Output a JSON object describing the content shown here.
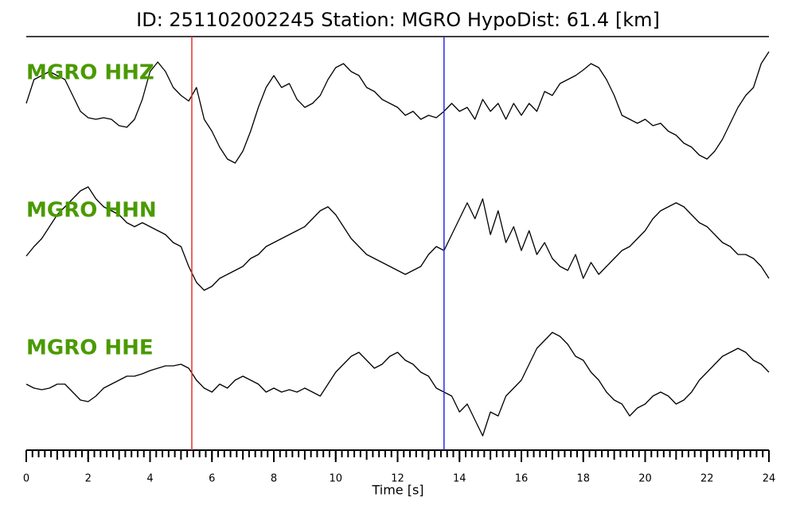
{
  "chart_data": {
    "type": "line",
    "title": "ID: 251102002245   Station: MGRO   HypoDist:    61.4 [km]",
    "xlabel": "Time [s]",
    "x": [
      0,
      0.25,
      0.5,
      0.75,
      1,
      1.25,
      1.5,
      1.75,
      2,
      2.25,
      2.5,
      2.75,
      3,
      3.25,
      3.5,
      3.75,
      4,
      4.25,
      4.5,
      4.75,
      5,
      5.25,
      5.5,
      5.75,
      6,
      6.25,
      6.5,
      6.75,
      7,
      7.25,
      7.5,
      7.75,
      8,
      8.25,
      8.5,
      8.75,
      9,
      9.25,
      9.5,
      9.75,
      10,
      10.25,
      10.5,
      10.75,
      11,
      11.25,
      11.5,
      11.75,
      12,
      12.25,
      12.5,
      12.75,
      13,
      13.25,
      13.5,
      13.75,
      14,
      14.25,
      14.5,
      14.75,
      15,
      15.25,
      15.5,
      15.75,
      16,
      16.25,
      16.5,
      16.75,
      17,
      17.25,
      17.5,
      17.75,
      18,
      18.25,
      18.5,
      18.75,
      19,
      19.25,
      19.5,
      19.75,
      20,
      20.25,
      20.5,
      20.75,
      21,
      21.25,
      21.5,
      21.75,
      22,
      22.25,
      22.5,
      22.75,
      23,
      23.25,
      23.5,
      23.75,
      24
    ],
    "series": [
      {
        "name": "MGRO HHZ",
        "color": "#000000",
        "values": [
          5,
          35,
          40,
          45,
          40,
          35,
          15,
          -5,
          -13,
          -15,
          -13,
          -15,
          -23,
          -25,
          -15,
          10,
          45,
          57,
          45,
          25,
          15,
          8,
          25,
          -15,
          -30,
          -50,
          -65,
          -70,
          -55,
          -30,
          0,
          25,
          40,
          25,
          30,
          10,
          0,
          5,
          15,
          35,
          50,
          55,
          45,
          40,
          25,
          20,
          10,
          5,
          0,
          -10,
          -5,
          -15,
          -10,
          -13,
          -5,
          5,
          -5,
          0,
          -15,
          10,
          -5,
          5,
          -15,
          5,
          -10,
          5,
          -5,
          20,
          15,
          30,
          35,
          40,
          47,
          55,
          50,
          35,
          15,
          -10,
          -15,
          -20,
          -15,
          -23,
          -20,
          -30,
          -35,
          -45,
          -50,
          -60,
          -65,
          -55,
          -40,
          -20,
          0,
          15,
          25,
          55,
          70
        ]
      },
      {
        "name": "MGRO HHN",
        "color": "#000000",
        "values": [
          -17,
          -5,
          5,
          20,
          35,
          45,
          55,
          65,
          70,
          55,
          45,
          40,
          35,
          25,
          20,
          25,
          20,
          15,
          10,
          0,
          -5,
          -30,
          -50,
          -60,
          -55,
          -45,
          -40,
          -35,
          -30,
          -20,
          -15,
          -5,
          0,
          5,
          10,
          15,
          20,
          30,
          40,
          45,
          35,
          20,
          5,
          -5,
          -15,
          -20,
          -25,
          -30,
          -35,
          -40,
          -35,
          -30,
          -15,
          -5,
          -10,
          10,
          30,
          50,
          30,
          55,
          10,
          40,
          0,
          20,
          -10,
          15,
          -15,
          0,
          -20,
          -30,
          -35,
          -15,
          -45,
          -25,
          -40,
          -30,
          -20,
          -10,
          -5,
          5,
          15,
          30,
          40,
          45,
          50,
          45,
          35,
          25,
          20,
          10,
          0,
          -5,
          -15,
          -15,
          -20,
          -30,
          -45
        ]
      },
      {
        "name": "MGRO HHE",
        "color": "#000000",
        "values": [
          -5,
          -10,
          -12,
          -10,
          -5,
          -5,
          -15,
          -25,
          -27,
          -20,
          -10,
          -5,
          0,
          5,
          5,
          8,
          12,
          15,
          18,
          18,
          20,
          15,
          0,
          -10,
          -15,
          -5,
          -10,
          0,
          5,
          0,
          -5,
          -15,
          -10,
          -15,
          -12,
          -15,
          -10,
          -15,
          -20,
          -5,
          10,
          20,
          30,
          35,
          25,
          15,
          20,
          30,
          35,
          25,
          20,
          10,
          5,
          -10,
          -15,
          -20,
          -40,
          -30,
          -50,
          -70,
          -40,
          -45,
          -20,
          -10,
          0,
          20,
          40,
          50,
          60,
          55,
          45,
          30,
          25,
          10,
          0,
          -15,
          -25,
          -30,
          -45,
          -35,
          -30,
          -20,
          -15,
          -20,
          -30,
          -25,
          -15,
          0,
          10,
          20,
          30,
          35,
          40,
          35,
          25,
          20,
          10
        ]
      }
    ],
    "label_color": "#4a9a00",
    "ylim": [
      -85,
      85
    ],
    "xlim": [
      0,
      24
    ],
    "xticks": [
      0,
      2,
      4,
      6,
      8,
      10,
      12,
      14,
      16,
      18,
      20,
      22,
      24
    ],
    "xminor_step": 0.2,
    "markers": [
      {
        "x": 5.35,
        "color": "#e8302a"
      },
      {
        "x": 13.5,
        "color": "#2a2ae8"
      }
    ]
  }
}
